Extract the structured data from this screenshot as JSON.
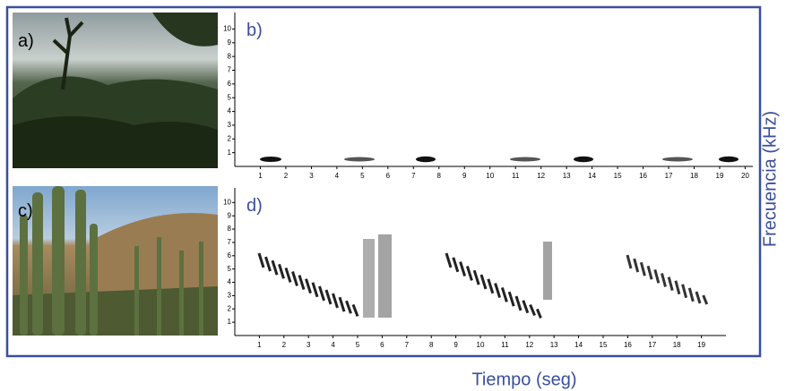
{
  "panels": [
    {
      "label": "a)"
    },
    {
      "label": "c)"
    }
  ],
  "spectrograms": [
    {
      "label": "b)",
      "xlim": [
        0,
        20.3
      ],
      "ylim": [
        0,
        11.2
      ],
      "xticks": [
        1,
        2,
        3,
        4,
        5,
        6,
        7,
        8,
        9,
        10,
        11,
        12,
        13,
        14,
        15,
        16,
        17,
        18,
        19,
        20
      ],
      "yticks": [
        1,
        2,
        3,
        4,
        5,
        6,
        7,
        8,
        9,
        10
      ]
    },
    {
      "label": "d)",
      "xlim": [
        0,
        20
      ],
      "ylim": [
        0,
        11.1
      ],
      "xticks": [
        1,
        2,
        3,
        4,
        5,
        6,
        7,
        8,
        9,
        10,
        11,
        12,
        13,
        14,
        15,
        16,
        17,
        18,
        19
      ],
      "yticks": [
        1,
        2,
        3,
        4,
        5,
        6,
        7,
        8,
        9,
        10
      ]
    }
  ],
  "axis_labels": {
    "y": "Frecuencia (kHz)",
    "x": "Tiempo (seg)"
  }
}
